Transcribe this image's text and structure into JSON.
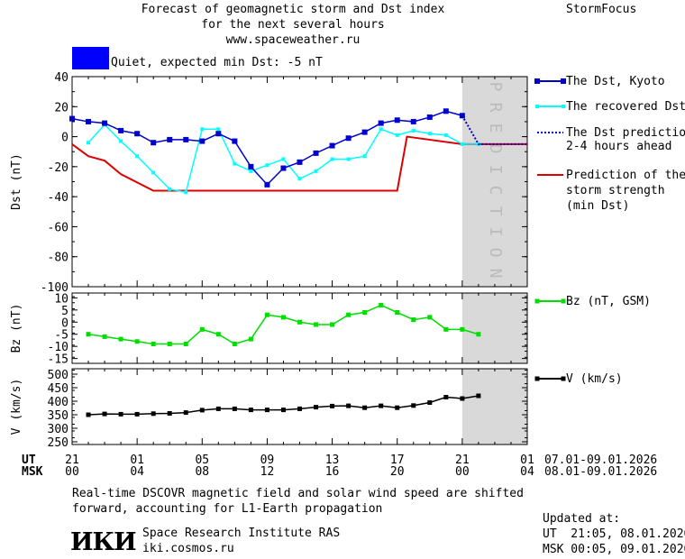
{
  "header": {
    "title_line1": "Forecast of geomagnetic storm and Dst index",
    "title_line2": "for the next several hours",
    "url": "www.spaceweather.ru",
    "brand": "StormFocus",
    "status_text": "Quiet, expected min Dst: -5 nT",
    "status_color": "#0000ff"
  },
  "prediction_label": "PREDICTION",
  "legend": {
    "dst_kyoto": "The Dst, Kyoto",
    "recovered": "The recovered Dst",
    "prediction_line1": "The Dst prediction",
    "prediction_line2": "2-4 hours ahead",
    "storm_line1": "Prediction of the",
    "storm_line2": "storm strength",
    "storm_line3": "(min Dst)",
    "bz": "Bz (nT, GSM)",
    "v": "V (km/s)"
  },
  "time_axis": {
    "ut_label": "UT",
    "msk_label": "MSK",
    "ut_ticks": [
      "21",
      "01",
      "05",
      "09",
      "13",
      "17",
      "21",
      "01"
    ],
    "msk_ticks": [
      "00",
      "04",
      "08",
      "12",
      "16",
      "20",
      "00",
      "04"
    ],
    "ut_range": "07.01-09.01.2026",
    "msk_range": "08.01-09.01.2026"
  },
  "footer": {
    "note_line1": "Real-time DSCOVR magnetic field and solar wind speed are shifted",
    "note_line2": "forward, accounting for L1-Earth propagation",
    "logo_text": "ИКИ",
    "institute": "Space Research Institute RAS",
    "site": "iki.cosmos.ru",
    "updated_label": "Updated at:",
    "updated_ut": "UT  21:05, 08.01.2026",
    "updated_msk": "MSK 00:05, 09.01.2026"
  },
  "colors": {
    "dst": "#0000cc",
    "recovered": "#00ffff",
    "storm": "#dd0000",
    "bz": "#00dd00",
    "v": "#000000",
    "prediction_band": "#d9d9d9"
  },
  "chart_data": [
    {
      "type": "line",
      "ylabel": "Dst (nT)",
      "ylim": [
        -100,
        40
      ],
      "yticks": [
        40,
        20,
        0,
        -20,
        -40,
        -60,
        -80,
        -100
      ],
      "x_unit": "hours since 21 UT, 07.01.2026",
      "xlim": [
        0,
        28
      ],
      "prediction_start": 24,
      "series": [
        {
          "name": "The Dst, Kyoto",
          "x": [
            0,
            1,
            2,
            3,
            4,
            5,
            6,
            7,
            8,
            9,
            10,
            11,
            12,
            13,
            14,
            15,
            16,
            17,
            18,
            19,
            20,
            21,
            22,
            23,
            24
          ],
          "y": [
            12,
            10,
            9,
            4,
            2,
            -4,
            -2,
            -2,
            -3,
            2,
            -3,
            -20,
            -32,
            -21,
            -17,
            -11,
            -6,
            -1,
            3,
            9,
            11,
            10,
            13,
            17,
            14
          ]
        },
        {
          "name": "The recovered Dst",
          "x": [
            1,
            2,
            3,
            4,
            5,
            6,
            7,
            8,
            9,
            10,
            11,
            12,
            13,
            14,
            15,
            16,
            17,
            18,
            19,
            20,
            21,
            22,
            23,
            24,
            25
          ],
          "y": [
            -4,
            8,
            -3,
            -13,
            -24,
            -35,
            -37,
            5,
            5,
            -18,
            -23,
            -19,
            -15,
            -28,
            -23,
            -15,
            -15,
            -13,
            5,
            1,
            4,
            2,
            1,
            -5,
            -5
          ]
        },
        {
          "name": "The Dst prediction 2-4 hours ahead",
          "x": [
            24,
            25,
            26,
            27,
            28
          ],
          "y": [
            14,
            -5,
            -5,
            -5,
            -5
          ]
        },
        {
          "name": "Prediction of the storm strength (min Dst)",
          "x": [
            0,
            1,
            2,
            3,
            5,
            20,
            20.6,
            24,
            28
          ],
          "y": [
            -5,
            -13,
            -16,
            -25,
            -36,
            -36,
            0,
            -5,
            -5
          ]
        }
      ]
    },
    {
      "type": "line",
      "ylabel": "Bz (nT)",
      "ylim": [
        -17,
        12
      ],
      "yticks": [
        10,
        5,
        0,
        -5,
        -10,
        -15
      ],
      "series": [
        {
          "name": "Bz (nT, GSM)",
          "x": [
            1,
            2,
            3,
            4,
            5,
            6,
            7,
            8,
            9,
            10,
            11,
            12,
            13,
            14,
            15,
            16,
            17,
            18,
            19,
            20,
            21,
            22,
            23,
            24,
            25
          ],
          "y": [
            -5,
            -6,
            -7,
            -8,
            -9,
            -9,
            -9,
            -3,
            -5,
            -9,
            -7,
            3,
            2,
            0,
            -1,
            -1,
            3,
            4,
            7,
            4,
            1,
            2,
            -3,
            -3,
            -5
          ]
        }
      ]
    },
    {
      "type": "line",
      "ylabel": "V (km/s)",
      "ylim": [
        240,
        520
      ],
      "yticks": [
        500,
        450,
        400,
        350,
        300,
        250
      ],
      "series": [
        {
          "name": "V (km/s)",
          "x": [
            1,
            2,
            3,
            4,
            5,
            6,
            7,
            8,
            9,
            10,
            11,
            12,
            13,
            14,
            15,
            16,
            17,
            18,
            19,
            20,
            21,
            22,
            23,
            24,
            25
          ],
          "y": [
            350,
            353,
            352,
            352,
            354,
            355,
            358,
            367,
            372,
            372,
            368,
            368,
            368,
            372,
            378,
            382,
            383,
            376,
            383,
            376,
            384,
            395,
            415,
            410,
            420
          ]
        }
      ]
    }
  ]
}
